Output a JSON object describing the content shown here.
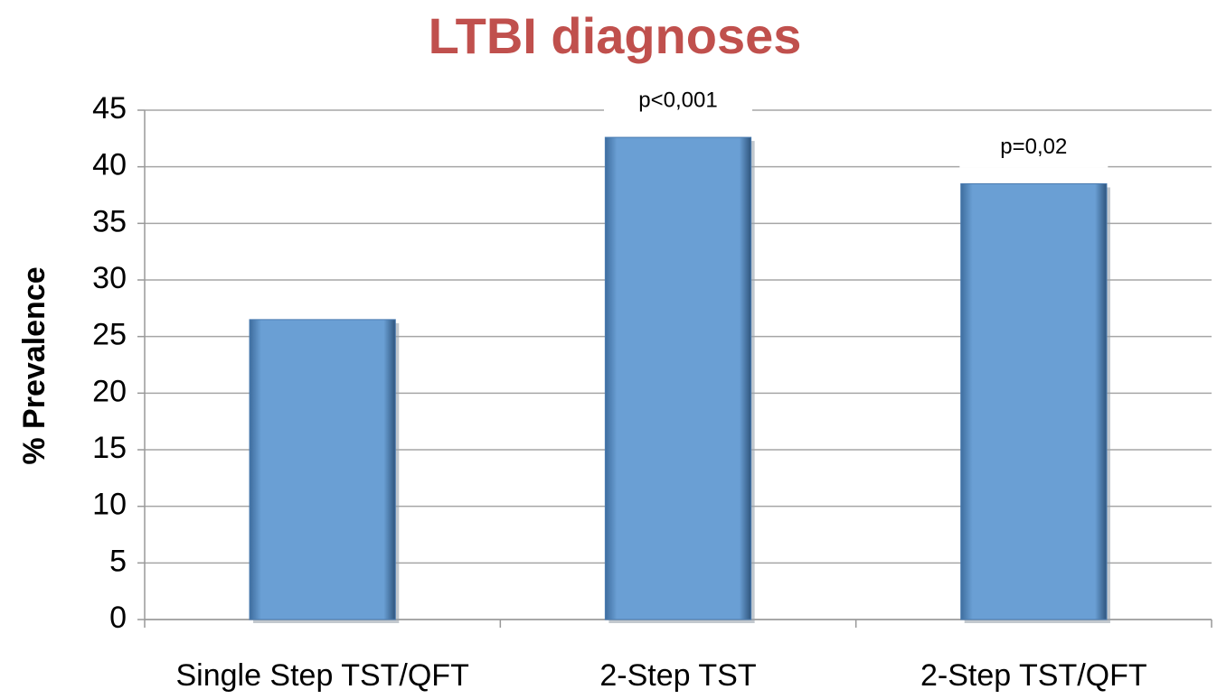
{
  "chart_data": {
    "type": "bar",
    "title": "LTBI diagnoses",
    "y_label": "% Prevalence",
    "categories": [
      "Single Step TST/QFT",
      "2-Step TST",
      "2-Step TST/QFT"
    ],
    "values": [
      26.5,
      42.6,
      38.5
    ],
    "color": "#6a9fd4",
    "annotations": [
      null,
      "p<0,001",
      "p=0,02"
    ],
    "ylim": [
      0,
      45
    ],
    "yticks": [
      0,
      5,
      10,
      15,
      20,
      25,
      30,
      35,
      40,
      45
    ],
    "grid": true
  }
}
